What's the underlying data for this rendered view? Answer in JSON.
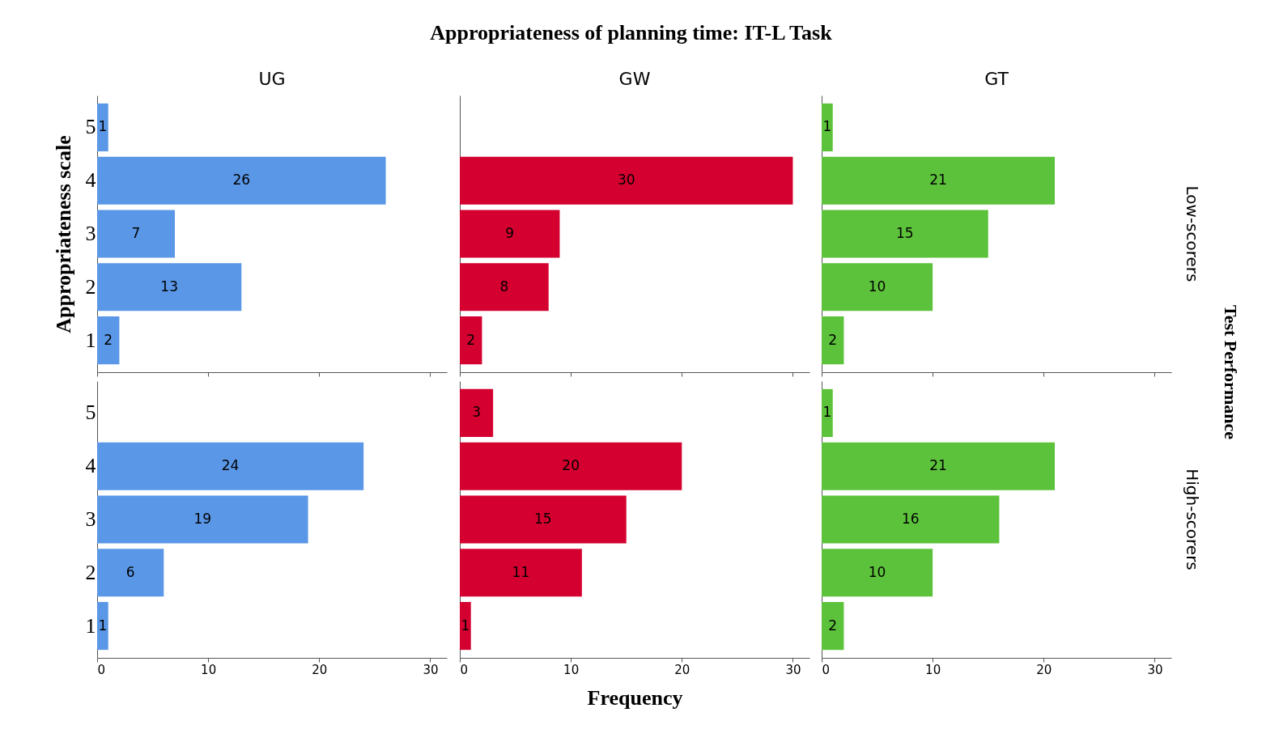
{
  "chart_data": [
    {
      "type": "bar",
      "orientation": "horizontal",
      "title": "UG",
      "annotations": [
        "Appropriateness of planning time: IT-L Task"
      ],
      "ylabel": "Appropriateness scale",
      "categories": [
        "5",
        "4",
        "3",
        "2",
        "1"
      ],
      "values": [
        1,
        26,
        7,
        13,
        2
      ],
      "color": "#5a97e6",
      "xlim": [
        0,
        31.5
      ],
      "xticks": [
        0,
        10,
        20,
        30
      ],
      "data_labels": true,
      "tick_labels": "y"
    },
    {
      "type": "bar",
      "orientation": "horizontal",
      "title": "GW",
      "categories": [
        "5",
        "4",
        "3",
        "2",
        "1"
      ],
      "values": [
        0,
        30,
        9,
        8,
        2
      ],
      "value_labels": [
        null,
        "30",
        "9",
        "8",
        "2"
      ],
      "color": "#d4002f",
      "xlim": [
        0,
        31.5
      ],
      "xticks": [
        0,
        10,
        20,
        30
      ],
      "tick_labels": false
    },
    {
      "type": "bar",
      "orientation": "horizontal",
      "title": "GT",
      "y2label": "Low-scorers",
      "annotations": [
        "Test Performance"
      ],
      "categories": [
        "5",
        "4",
        "3",
        "2",
        "1"
      ],
      "values": [
        1,
        21,
        15,
        10,
        2
      ],
      "color": "#5dc23b",
      "xlim": [
        0,
        31.5
      ],
      "xticks": [
        0,
        10,
        20,
        30
      ],
      "data_labels": true,
      "tick_labels": false
    },
    {
      "type": "bar",
      "orientation": "horizontal",
      "categories": [
        "5",
        "4",
        "3",
        "2",
        "1"
      ],
      "values": [
        0,
        24,
        19,
        6,
        1
      ],
      "value_labels": [
        null,
        "24",
        "19",
        "6",
        "1"
      ],
      "color": "#5a97e6",
      "xlim": [
        0,
        31.5
      ],
      "xticks": [
        0,
        10,
        20,
        30
      ]
    },
    {
      "type": "bar",
      "orientation": "horizontal",
      "xlabel": "Frequency",
      "categories": [
        "5",
        "4",
        "3",
        "2",
        "1"
      ],
      "values": [
        3,
        20,
        15,
        11,
        1
      ],
      "color": "#d4002f",
      "xlim": [
        0,
        31.5
      ],
      "xticks": [
        0,
        10,
        20,
        30
      ],
      "data_labels": true,
      "tick_labels": "x"
    },
    {
      "type": "bar",
      "orientation": "horizontal",
      "y2label": "High-scorers",
      "categories": [
        "5",
        "4",
        "3",
        "2",
        "1"
      ],
      "values": [
        1,
        21,
        16,
        10,
        2
      ],
      "color": "#5dc23b",
      "xlim": [
        0,
        31.5
      ],
      "xticks": [
        0,
        10,
        20,
        30
      ],
      "data_labels": true,
      "tick_labels": "x"
    }
  ]
}
